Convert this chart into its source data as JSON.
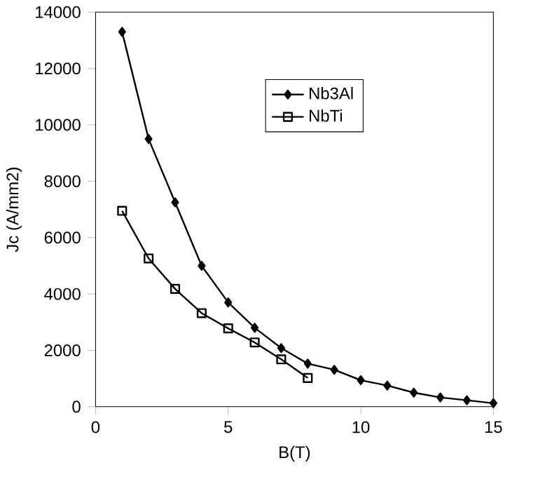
{
  "chart_data": {
    "type": "line",
    "xlabel": "B(T)",
    "ylabel": "Jc (A/mm2)",
    "xlim": [
      0,
      15
    ],
    "xticks": [
      0,
      5,
      10,
      15
    ],
    "ylim": [
      0,
      14000
    ],
    "yticks": [
      0,
      2000,
      4000,
      6000,
      8000,
      10000,
      12000,
      14000
    ],
    "grid": false,
    "legend": "top",
    "series": [
      {
        "name": "Nb3Al",
        "color": "#000000",
        "marker": "diamond",
        "x": [
          1,
          2,
          3,
          4,
          5,
          6,
          7,
          8,
          9,
          10,
          11,
          12,
          13,
          14,
          15
        ],
        "values": [
          13300,
          9500,
          7250,
          5000,
          3700,
          2800,
          2080,
          1530,
          1310,
          940,
          750,
          500,
          330,
          230,
          125
        ]
      },
      {
        "name": "NbTi",
        "color": "#000000",
        "marker": "square",
        "x": [
          1,
          2,
          3,
          4,
          5,
          6,
          7,
          8
        ],
        "values": [
          6950,
          5260,
          4180,
          3320,
          2780,
          2280,
          1680,
          1020
        ]
      }
    ]
  }
}
